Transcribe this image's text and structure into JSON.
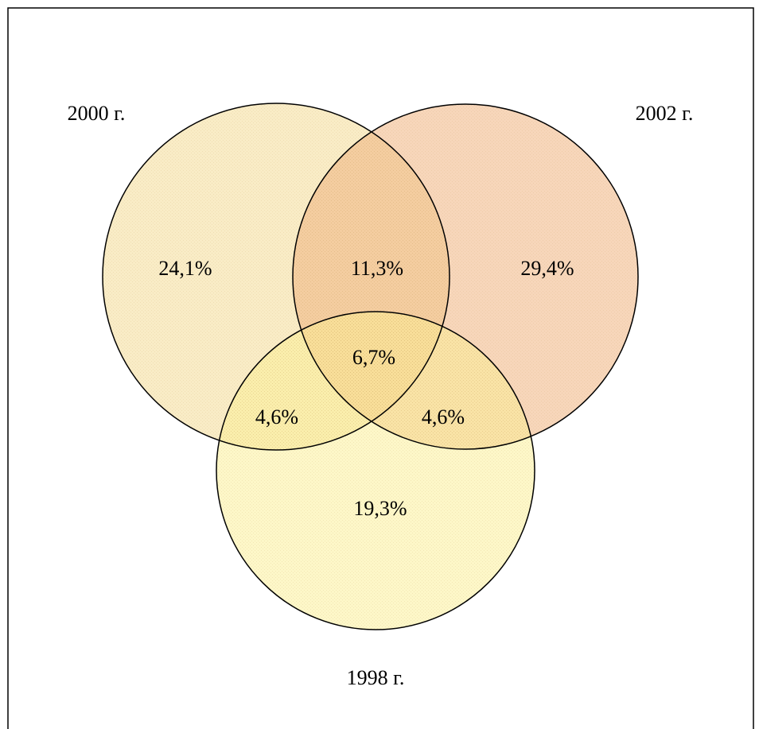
{
  "sets": [
    {
      "label": "2000 г."
    },
    {
      "label": "2002 г."
    },
    {
      "label": "1998 г."
    }
  ],
  "regions": [
    {
      "label": "24,1%"
    },
    {
      "label": "11,3%"
    },
    {
      "label": "29,4%"
    },
    {
      "label": "6,7%"
    },
    {
      "label": "4,6%"
    },
    {
      "label": "4,6%"
    },
    {
      "label": "19,3%"
    }
  ]
}
